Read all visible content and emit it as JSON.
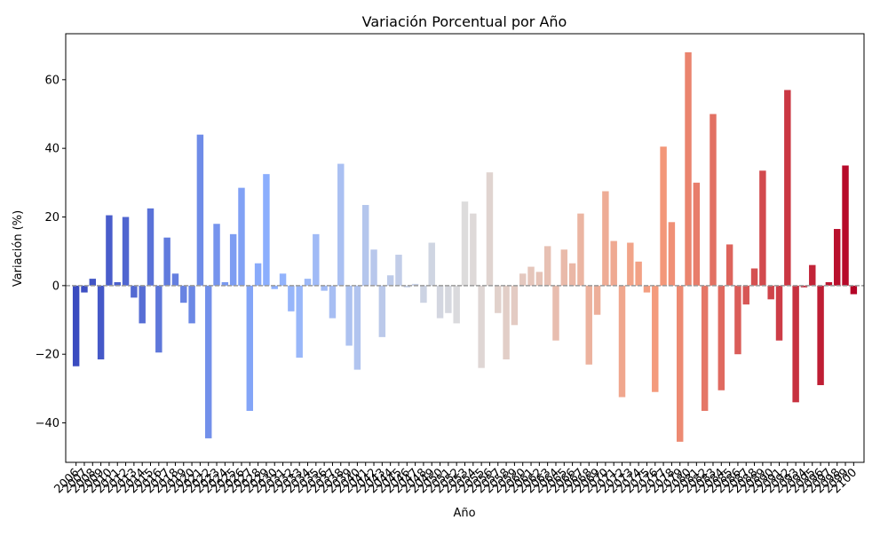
{
  "chart_data": {
    "type": "bar",
    "title": "Variación Porcentual por Año",
    "xlabel": "Año",
    "ylabel": "Variación (%)",
    "palette": "coolwarm",
    "categories": [
      "2006",
      "2007",
      "2008",
      "2009",
      "2010",
      "2011",
      "2012",
      "2013",
      "2014",
      "2015",
      "2016",
      "2017",
      "2018",
      "2019",
      "2020",
      "2021",
      "2022",
      "2023",
      "2024",
      "2025",
      "2026",
      "2027",
      "2028",
      "2029",
      "2030",
      "2031",
      "2032",
      "2033",
      "2034",
      "2035",
      "2036",
      "2037",
      "2038",
      "2039",
      "2040",
      "2041",
      "2042",
      "2043",
      "2044",
      "2045",
      "2046",
      "2047",
      "2048",
      "2049",
      "2050",
      "2051",
      "2052",
      "2053",
      "2054",
      "2055",
      "2056",
      "2057",
      "2058",
      "2059",
      "2060",
      "2061",
      "2062",
      "2063",
      "2064",
      "2065",
      "2066",
      "2067",
      "2068",
      "2069",
      "2070",
      "2071",
      "2072",
      "2073",
      "2074",
      "2075",
      "2076",
      "2077",
      "2078",
      "2079",
      "2080",
      "2081",
      "2082",
      "2083",
      "2084",
      "2085",
      "2086",
      "2087",
      "2088",
      "2089",
      "2090",
      "2091",
      "2092",
      "2093",
      "2094",
      "2095",
      "2096",
      "2097",
      "2098",
      "2099",
      "2100"
    ],
    "values": [
      -23.5,
      -2,
      2,
      -21.5,
      20.5,
      1,
      20,
      -3.5,
      -11,
      22.5,
      -19.5,
      14,
      3.5,
      -5,
      -11,
      44,
      -44.5,
      18,
      1,
      15,
      28.5,
      -36.5,
      6.5,
      32.5,
      -1,
      3.5,
      -7.5,
      -21,
      2,
      15,
      -1.5,
      -9.5,
      35.5,
      -17.5,
      -24.5,
      23.5,
      10.5,
      -15,
      3,
      9,
      -0.5,
      0.5,
      -5,
      12.5,
      -9.5,
      -8,
      -11,
      24.5,
      21,
      -24,
      33,
      -8,
      -21.5,
      -11.5,
      3.5,
      5.5,
      4,
      11.5,
      -16,
      10.5,
      6.5,
      21,
      -23,
      -8.5,
      27.5,
      13,
      -32.5,
      12.5,
      7,
      -2,
      -31,
      40.5,
      18.5,
      -45.5,
      68,
      30,
      -36.5,
      50,
      -30.5,
      12,
      -20,
      -5.5,
      5,
      33.5,
      -4,
      -16,
      57,
      -34,
      -0.5,
      6,
      -29,
      1,
      16.5,
      35,
      -2.5
    ],
    "ylim": [
      -51.5,
      73.4
    ],
    "yticks": [
      {
        "value": -40,
        "label": "−40"
      },
      {
        "value": -20,
        "label": "−20"
      },
      0,
      20,
      40,
      60
    ]
  }
}
